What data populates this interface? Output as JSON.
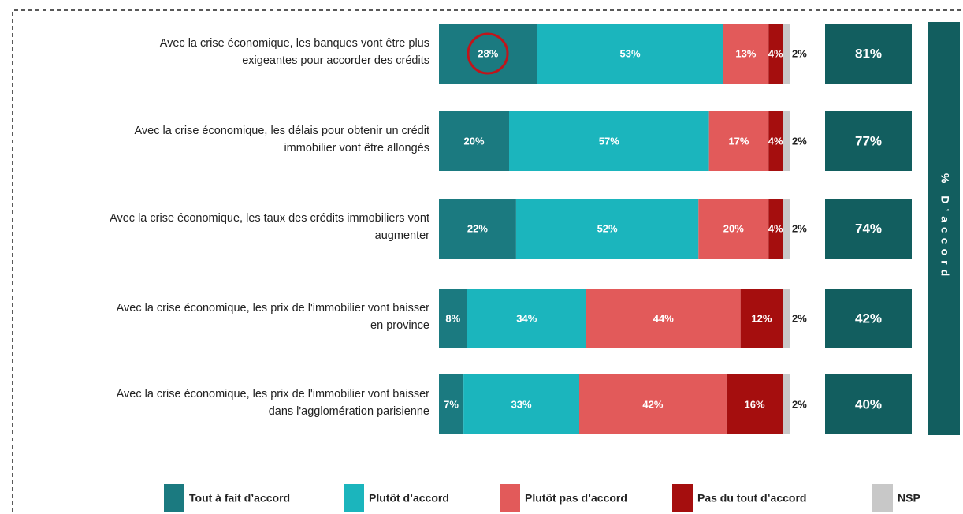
{
  "chart_data": {
    "type": "stacked_bar_horizontal",
    "categories": [
      "Avec la crise économique, les banques vont être plus\nexigeantes pour accorder des crédits",
      "Avec la crise économique, les délais pour obtenir un crédit\nimmobilier vont être allongés",
      "Avec la crise économique, les taux des crédits immobiliers vont\naugmenter",
      "Avec la crise économique, les prix de l'immobilier vont baisser\nen province",
      "Avec la crise économique, les prix de l'immobilier vont baisser\ndans l'agglomération parisienne"
    ],
    "series": [
      {
        "name": "Tout à fait d’accord",
        "color": "#1b7a80",
        "values": [
          28,
          20,
          22,
          8,
          7
        ],
        "value_labels": [
          "28%",
          "20%",
          "22%",
          "8%",
          "7%"
        ]
      },
      {
        "name": "Plutôt d’accord",
        "color": "#1bb5bd",
        "values": [
          53,
          57,
          52,
          34,
          33
        ],
        "value_labels": [
          "53%",
          "57%",
          "52%",
          "34%",
          "33%"
        ]
      },
      {
        "name": "Plutôt pas d’accord",
        "color": "#e25a5a",
        "values": [
          13,
          17,
          20,
          44,
          42
        ],
        "value_labels": [
          "13%",
          "17%",
          "20%",
          "44%",
          "42%"
        ]
      },
      {
        "name": "Pas du tout d’accord",
        "color": "#a50e0e",
        "values": [
          4,
          4,
          4,
          12,
          16
        ],
        "value_labels": [
          "4%",
          "4%",
          "4%",
          "12%",
          "16%"
        ]
      },
      {
        "name": "NSP",
        "color": "#c8c8c8",
        "values": [
          2,
          2,
          2,
          2,
          2
        ],
        "value_labels": [
          "2%",
          "2%",
          "2%",
          "2%",
          "2%"
        ]
      }
    ],
    "totals": {
      "label": "% D’accord",
      "color": "#125e5f",
      "values": [
        81,
        77,
        74,
        42,
        40
      ],
      "value_labels": [
        "81%",
        "77%",
        "74%",
        "42%",
        "40%"
      ]
    }
  }
}
